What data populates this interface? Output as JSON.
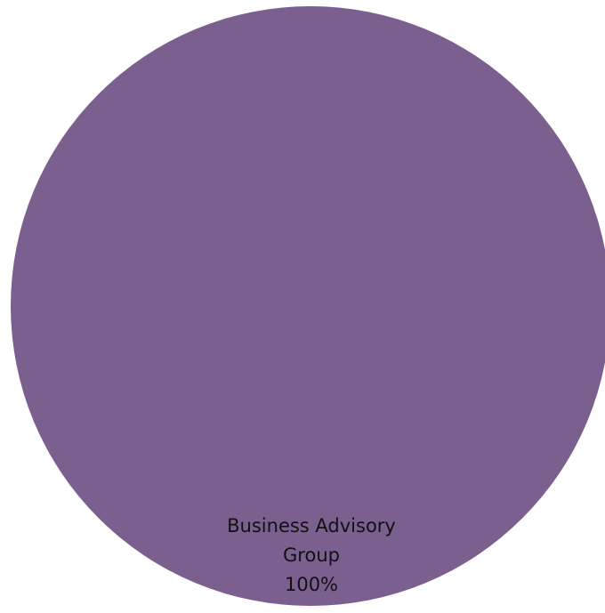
{
  "chart_data": {
    "type": "pie",
    "title": "",
    "slices": [
      {
        "label_lines": [
          "Business Advisory",
          "Group"
        ],
        "percent_label": "100%",
        "value": 100,
        "color": "#7b5f8f"
      }
    ]
  }
}
